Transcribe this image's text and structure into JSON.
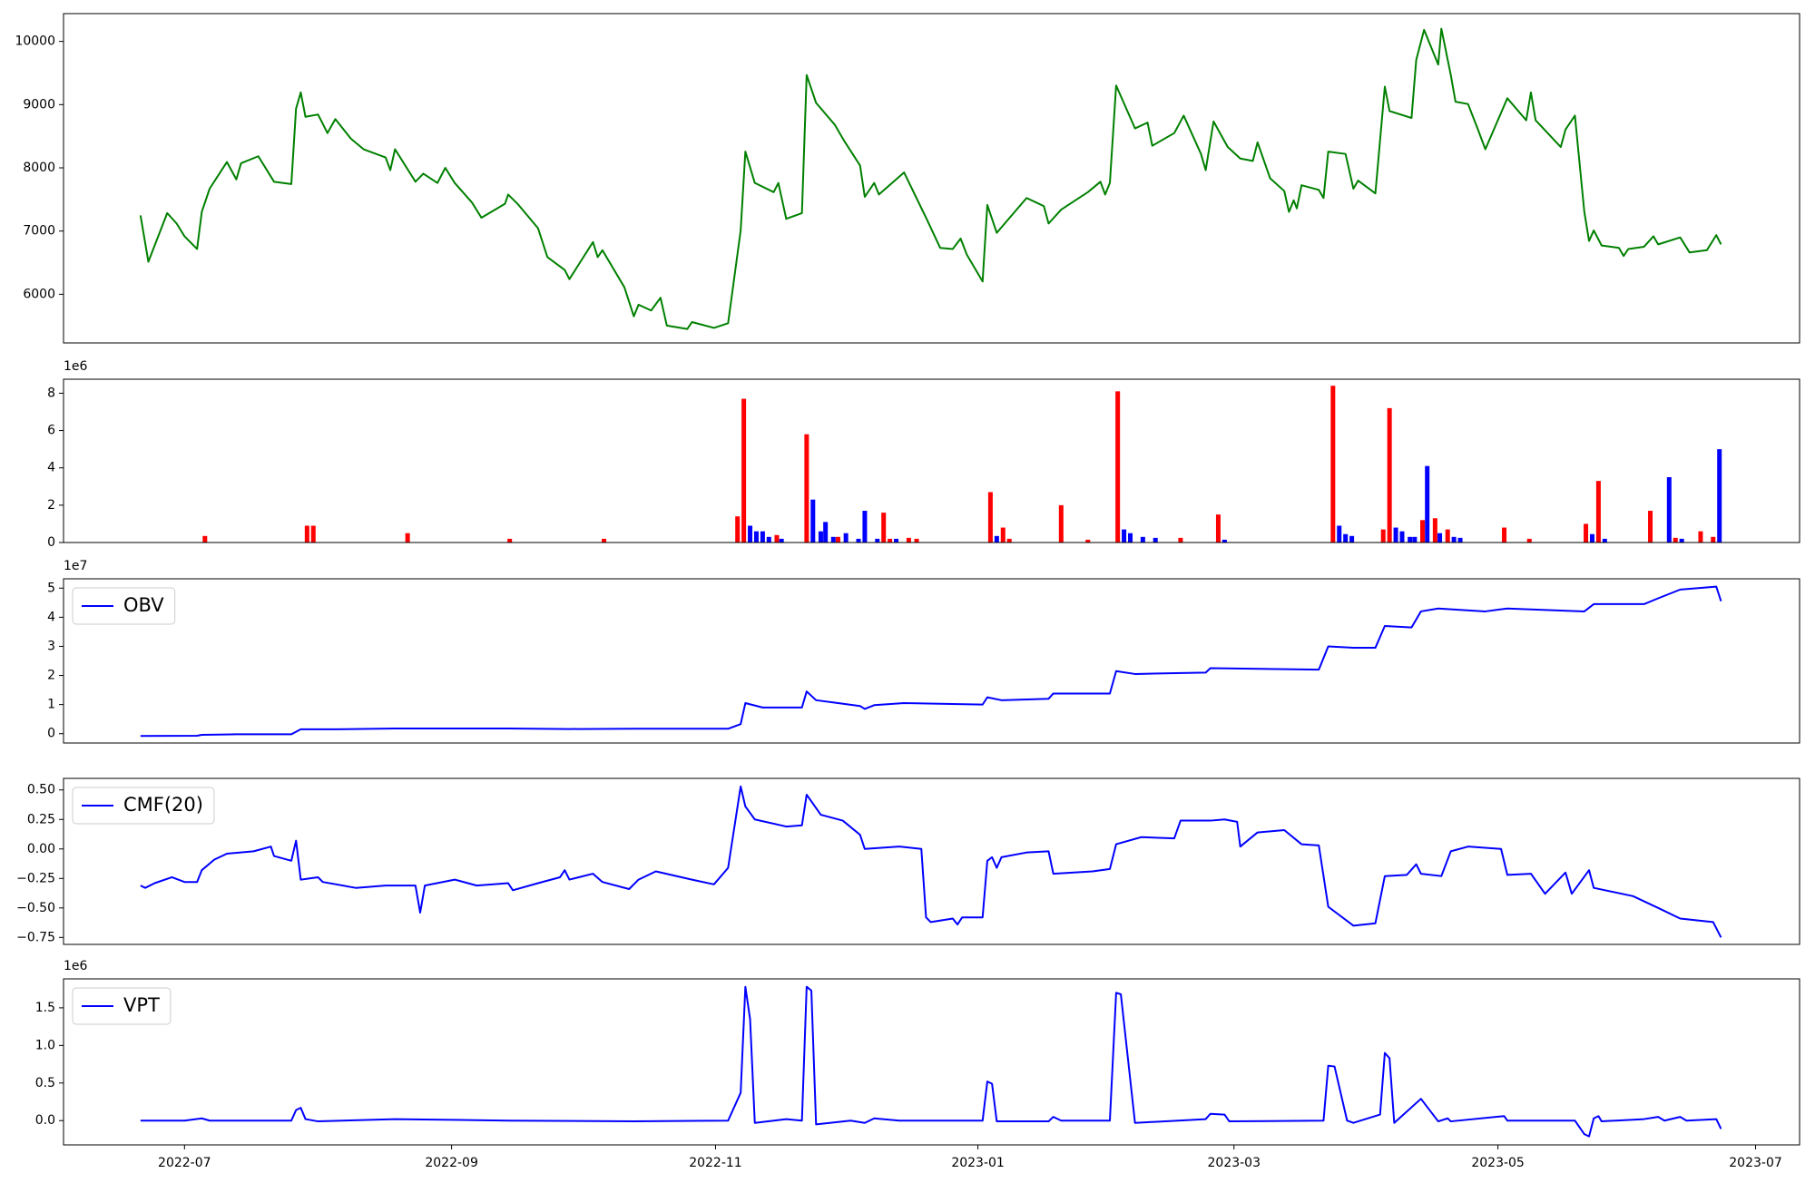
{
  "chart_data": [
    {
      "type": "line",
      "color": "green",
      "x": [
        2022.472,
        2022.477,
        2022.489,
        2022.495,
        2022.5,
        2022.508,
        2022.511,
        2022.516,
        2022.527,
        2022.533,
        2022.536,
        2022.547,
        2022.557,
        2022.568,
        2022.571,
        2022.574,
        2022.577,
        2022.585,
        2022.591,
        2022.596,
        2022.606,
        2022.614,
        2022.628,
        2022.631,
        2022.634,
        2022.647,
        2022.652,
        2022.661,
        2022.666,
        2022.672,
        2022.683,
        2022.689,
        2022.704,
        2022.706,
        2022.712,
        2022.725,
        2022.731,
        2022.742,
        2022.745,
        2022.76,
        2022.763,
        2022.766,
        2022.78,
        2022.786,
        2022.789,
        2022.797,
        2022.803,
        2022.807,
        2022.82,
        2022.823,
        2022.837,
        2022.846,
        2022.854,
        2022.857,
        2022.863,
        2022.875,
        2022.878,
        2022.883,
        2022.893,
        2022.896,
        2022.902,
        2022.914,
        2022.92,
        2022.93,
        2022.933,
        2022.939,
        2022.942,
        2022.958,
        2022.972,
        2022.981,
        2022.989,
        2022.994,
        2022.998,
        2023.008,
        2023.011,
        2023.017,
        2023.036,
        2023.047,
        2023.05,
        2023.058,
        2023.075,
        2023.083,
        2023.086,
        2023.089,
        2023.093,
        2023.105,
        2023.113,
        2023.116,
        2023.13,
        2023.136,
        2023.147,
        2023.15,
        2023.155,
        2023.164,
        2023.172,
        2023.18,
        2023.183,
        2023.191,
        2023.2,
        2023.203,
        2023.206,
        2023.208,
        2023.211,
        2023.222,
        2023.225,
        2023.228,
        2023.239,
        2023.244,
        2023.247,
        2023.258,
        2023.264,
        2023.267,
        2023.281,
        2023.284,
        2023.289,
        2023.298,
        2023.3,
        2023.306,
        2023.309,
        2023.317,
        2023.323,
        2023.328,
        2023.342,
        2023.354,
        2023.357,
        2023.36,
        2023.376,
        2023.379,
        2023.385,
        2023.391,
        2023.394,
        2023.397,
        2023.402,
        2023.413,
        2023.416,
        2023.419,
        2023.429,
        2023.435,
        2023.438,
        2023.452,
        2023.458,
        2023.469,
        2023.475,
        2023.478
      ],
      "values": [
        7248,
        6514,
        7284,
        7119,
        6917,
        6716,
        7303,
        7670,
        8092,
        7817,
        8073,
        8183,
        7780,
        7743,
        8936,
        9193,
        8807,
        8844,
        8550,
        8771,
        8459,
        8294,
        8165,
        7963,
        8294,
        7780,
        7908,
        7761,
        8000,
        7761,
        7450,
        7211,
        7431,
        7578,
        7431,
        7046,
        6587,
        6385,
        6239,
        6826,
        6587,
        6697,
        6110,
        5651,
        5835,
        5743,
        5945,
        5505,
        5450,
        5560,
        5468,
        5541,
        7009,
        8257,
        7761,
        7615,
        7761,
        7193,
        7284,
        9468,
        9028,
        8679,
        8422,
        8037,
        7541,
        7761,
        7578,
        7927,
        7211,
        6734,
        6716,
        6881,
        6624,
        6202,
        7413,
        6972,
        7523,
        7394,
        7119,
        7339,
        7615,
        7780,
        7578,
        7761,
        9303,
        8624,
        8716,
        8349,
        8550,
        8826,
        8220,
        7963,
        8734,
        8330,
        8147,
        8110,
        8404,
        7835,
        7633,
        7303,
        7486,
        7358,
        7725,
        7651,
        7523,
        8257,
        8220,
        7670,
        7798,
        7596,
        9284,
        8899,
        8789,
        9706,
        10183,
        9633,
        10202,
        9468,
        9046,
        9009,
        8624,
        8294,
        9101,
        8752,
        9193,
        8752,
        8330,
        8605,
        8826,
        7303,
        6844,
        7009,
        6771,
        6734,
        6606,
        6716,
        6752,
        6917,
        6789,
        6899,
        6661,
        6697,
        6936,
        6789
      ],
      "xlim": [
        2022.423,
        2023.528
      ],
      "ylim": [
        5230,
        10440
      ],
      "yticks": [
        6000,
        7000,
        8000,
        9000,
        10000
      ]
    },
    {
      "type": "bar",
      "y_offset_text": "1e6",
      "x": [
        2022.513,
        2022.578,
        2022.582,
        2022.642,
        2022.707,
        2022.767,
        2022.852,
        2022.856,
        2022.86,
        2022.864,
        2022.868,
        2022.872,
        2022.877,
        2022.88,
        2022.896,
        2022.9,
        2022.905,
        2022.908,
        2022.913,
        2022.916,
        2022.921,
        2022.929,
        2022.933,
        2022.941,
        2022.945,
        2022.949,
        2022.953,
        2022.961,
        2022.966,
        2023.013,
        2023.017,
        2023.021,
        2023.025,
        2023.058,
        2023.075,
        2023.094,
        2023.098,
        2023.102,
        2023.11,
        2023.118,
        2023.134,
        2023.158,
        2023.162,
        2023.231,
        2023.235,
        2023.239,
        2023.243,
        2023.263,
        2023.267,
        2023.271,
        2023.275,
        2023.28,
        2023.283,
        2023.288,
        2023.291,
        2023.296,
        2023.299,
        2023.304,
        2023.308,
        2023.312,
        2023.34,
        2023.356,
        2023.392,
        2023.396,
        2023.4,
        2023.404,
        2023.433,
        2023.445,
        2023.449,
        2023.453,
        2023.465,
        2023.473,
        2023.477
      ],
      "values": [
        0.35,
        0.9,
        0.9,
        0.5,
        0.2,
        0.2,
        1.4,
        7.7,
        0.9,
        0.6,
        0.6,
        0.3,
        0.4,
        0.2,
        5.8,
        2.3,
        0.6,
        1.1,
        0.3,
        0.3,
        0.5,
        0.2,
        1.7,
        0.2,
        1.6,
        0.2,
        0.2,
        0.25,
        0.2,
        2.7,
        0.35,
        0.8,
        0.2,
        2.0,
        0.15,
        8.1,
        0.7,
        0.5,
        0.3,
        0.25,
        0.25,
        1.5,
        0.15,
        8.4,
        0.9,
        0.45,
        0.35,
        0.7,
        7.2,
        0.8,
        0.6,
        0.3,
        0.3,
        1.2,
        4.1,
        1.3,
        0.5,
        0.7,
        0.3,
        0.25,
        0.8,
        0.2,
        1.0,
        0.45,
        3.3,
        0.2,
        1.7,
        3.5,
        0.25,
        0.2,
        0.6,
        0.3,
        5.0
      ],
      "colors": [
        "red",
        "red",
        "red",
        "red",
        "red",
        "red",
        "red",
        "red",
        "blue",
        "blue",
        "blue",
        "blue",
        "red",
        "blue",
        "red",
        "blue",
        "blue",
        "blue",
        "blue",
        "red",
        "blue",
        "blue",
        "blue",
        "blue",
        "red",
        "red",
        "blue",
        "red",
        "red",
        "red",
        "blue",
        "red",
        "red",
        "red",
        "red",
        "red",
        "blue",
        "blue",
        "blue",
        "blue",
        "red",
        "red",
        "blue",
        "red",
        "blue",
        "blue",
        "blue",
        "red",
        "red",
        "blue",
        "blue",
        "blue",
        "blue",
        "red",
        "blue",
        "red",
        "blue",
        "red",
        "blue",
        "blue",
        "red",
        "red",
        "red",
        "blue",
        "red",
        "blue",
        "red",
        "blue",
        "red",
        "blue",
        "red",
        "red",
        "blue"
      ],
      "xlim": [
        2022.423,
        2023.528
      ],
      "ylim": [
        0,
        8.75
      ],
      "yticks": [
        0,
        2,
        4,
        6,
        8
      ]
    },
    {
      "type": "line",
      "y_offset_text": "1e7",
      "legend": "upper left",
      "x": [
        2022.472,
        2022.508,
        2022.511,
        2022.533,
        2022.568,
        2022.574,
        2022.596,
        2022.634,
        2022.706,
        2022.745,
        2022.786,
        2022.846,
        2022.854,
        2022.857,
        2022.868,
        2022.893,
        2022.896,
        2022.902,
        2022.916,
        2022.93,
        2022.933,
        2022.939,
        2022.958,
        2023.008,
        2023.011,
        2023.02,
        2023.05,
        2023.053,
        2023.089,
        2023.093,
        2023.105,
        2023.15,
        2023.153,
        2023.222,
        2023.228,
        2023.244,
        2023.258,
        2023.264,
        2023.281,
        2023.287,
        2023.298,
        2023.328,
        2023.342,
        2023.391,
        2023.397,
        2023.429,
        2023.438,
        2023.452,
        2023.475,
        2023.478
      ],
      "series": [
        {
          "name": "OBV",
          "color": "blue",
          "values": [
            -0.08,
            -0.07,
            -0.04,
            -0.02,
            -0.02,
            0.15,
            0.15,
            0.18,
            0.18,
            0.16,
            0.17,
            0.17,
            0.33,
            1.05,
            0.9,
            0.9,
            1.45,
            1.15,
            1.05,
            0.95,
            0.85,
            0.98,
            1.05,
            1.0,
            1.25,
            1.15,
            1.2,
            1.38,
            1.38,
            2.15,
            2.05,
            2.1,
            2.25,
            2.2,
            3.0,
            2.95,
            2.95,
            3.7,
            3.65,
            4.2,
            4.3,
            4.2,
            4.3,
            4.2,
            4.45,
            4.45,
            4.65,
            4.95,
            5.05,
            4.55
          ]
        }
      ],
      "xlim": [
        2022.423,
        2023.528
      ],
      "ylim": [
        -0.32,
        5.32
      ],
      "yticks": [
        0,
        1,
        2,
        3,
        4,
        5
      ]
    },
    {
      "type": "line",
      "legend": "upper left",
      "x": [
        2022.472,
        2022.475,
        2022.481,
        2022.492,
        2022.5,
        2022.508,
        2022.511,
        2022.519,
        2022.527,
        2022.544,
        2022.555,
        2022.557,
        2022.568,
        2022.571,
        2022.574,
        2022.585,
        2022.588,
        2022.609,
        2022.628,
        2022.647,
        2022.65,
        2022.653,
        2022.672,
        2022.686,
        2022.706,
        2022.709,
        2022.725,
        2022.739,
        2022.742,
        2022.745,
        2022.76,
        2022.766,
        2022.783,
        2022.789,
        2022.8,
        2022.823,
        2022.837,
        2022.846,
        2022.854,
        2022.857,
        2022.863,
        2022.883,
        2022.893,
        2022.896,
        2022.905,
        2022.919,
        2022.93,
        2022.933,
        2022.955,
        2022.969,
        2022.972,
        2022.975,
        2022.989,
        2022.992,
        2022.995,
        2023.008,
        2023.011,
        2023.014,
        2023.017,
        2023.02,
        2023.036,
        2023.05,
        2023.053,
        2023.078,
        2023.089,
        2023.093,
        2023.109,
        2023.13,
        2023.134,
        2023.153,
        2023.162,
        2023.17,
        2023.172,
        2023.183,
        2023.2,
        2023.211,
        2023.222,
        2023.228,
        2023.244,
        2023.258,
        2023.264,
        2023.278,
        2023.284,
        2023.287,
        2023.3,
        2023.306,
        2023.317,
        2023.338,
        2023.342,
        2023.357,
        2023.366,
        2023.379,
        2023.383,
        2023.394,
        2023.397,
        2023.422,
        2023.438,
        2023.452,
        2023.473,
        2023.478
      ],
      "series": [
        {
          "name": "CMF(20)",
          "color": "blue",
          "values": [
            -0.31,
            -0.33,
            -0.29,
            -0.24,
            -0.28,
            -0.28,
            -0.18,
            -0.09,
            -0.04,
            -0.02,
            0.02,
            -0.06,
            -0.1,
            0.07,
            -0.26,
            -0.24,
            -0.28,
            -0.33,
            -0.31,
            -0.31,
            -0.54,
            -0.31,
            -0.26,
            -0.31,
            -0.29,
            -0.35,
            -0.29,
            -0.24,
            -0.18,
            -0.26,
            -0.21,
            -0.28,
            -0.34,
            -0.26,
            -0.19,
            -0.26,
            -0.3,
            -0.16,
            0.53,
            0.36,
            0.25,
            0.19,
            0.2,
            0.46,
            0.29,
            0.24,
            0.12,
            0.0,
            0.02,
            0.0,
            -0.58,
            -0.62,
            -0.59,
            -0.64,
            -0.58,
            -0.58,
            -0.1,
            -0.07,
            -0.16,
            -0.07,
            -0.03,
            -0.02,
            -0.21,
            -0.19,
            -0.17,
            0.04,
            0.1,
            0.09,
            0.24,
            0.24,
            0.25,
            0.23,
            0.02,
            0.14,
            0.16,
            0.04,
            0.03,
            -0.49,
            -0.65,
            -0.63,
            -0.23,
            -0.22,
            -0.13,
            -0.21,
            -0.23,
            -0.02,
            0.02,
            0.0,
            -0.22,
            -0.21,
            -0.38,
            -0.2,
            -0.38,
            -0.18,
            -0.33,
            -0.4,
            -0.5,
            -0.59,
            -0.62,
            -0.75
          ]
        }
      ],
      "xlim": [
        2022.423,
        2023.528
      ],
      "ylim": [
        -0.809,
        0.598
      ],
      "yticks": [
        {
          "value": 0.5,
          "label": "0.50"
        },
        0.25,
        {
          "value": 0,
          "label": "0.00"
        },
        {
          "value": -0.25,
          "label": "−0.25"
        },
        {
          "value": -0.5,
          "label": "−0.50"
        },
        {
          "value": -0.75,
          "label": "−0.75"
        }
      ]
    },
    {
      "type": "line",
      "y_offset_text": "1e6",
      "legend": "upper left",
      "x": [
        2022.472,
        2022.5,
        2022.511,
        2022.516,
        2022.568,
        2022.571,
        2022.574,
        2022.577,
        2022.585,
        2022.634,
        2022.706,
        2022.786,
        2022.846,
        2022.854,
        2022.857,
        2022.86,
        2022.863,
        2022.883,
        2022.893,
        2022.896,
        2022.899,
        2022.902,
        2022.924,
        2022.933,
        2022.939,
        2022.955,
        2023.008,
        2023.011,
        2023.014,
        2023.017,
        2023.05,
        2023.053,
        2023.058,
        2023.089,
        2023.093,
        2023.096,
        2023.105,
        2023.15,
        2023.153,
        2023.162,
        2023.165,
        2023.225,
        2023.228,
        2023.232,
        2023.24,
        2023.244,
        2023.261,
        2023.264,
        2023.267,
        2023.27,
        2023.287,
        2023.298,
        2023.304,
        2023.306,
        2023.34,
        2023.342,
        2023.385,
        2023.391,
        2023.394,
        2023.397,
        2023.4,
        2023.402,
        2023.429,
        2023.438,
        2023.442,
        2023.452,
        2023.456,
        2023.475,
        2023.478
      ],
      "series": [
        {
          "name": "VPT",
          "color": "blue",
          "values": [
            0,
            0,
            0.03,
            0,
            0,
            0.14,
            0.17,
            0.02,
            -0.01,
            0.02,
            0,
            -0.01,
            0,
            0.37,
            1.78,
            1.35,
            -0.03,
            0.02,
            0,
            1.78,
            1.73,
            -0.05,
            0,
            -0.03,
            0.03,
            0,
            0,
            0.52,
            0.49,
            -0.01,
            -0.01,
            0.05,
            0,
            0,
            1.7,
            1.68,
            -0.03,
            0.02,
            0.09,
            0.08,
            -0.01,
            0,
            0.73,
            0.72,
            0,
            -0.03,
            0.08,
            0.9,
            0.83,
            -0.03,
            0.29,
            -0.01,
            0.03,
            -0.01,
            0.06,
            0,
            0,
            -0.18,
            -0.21,
            0.03,
            0.06,
            -0.01,
            0.02,
            0.05,
            0,
            0.05,
            0,
            0.02,
            -0.11
          ]
        }
      ],
      "xlim": [
        2022.423,
        2023.528
      ],
      "ylim": [
        -0.323,
        1.885
      ],
      "yticks": [
        {
          "value": 0,
          "label": "0.0"
        },
        0.5,
        {
          "value": 1,
          "label": "1.0"
        },
        1.5
      ],
      "xticks": [
        {
          "value": 2022.5,
          "label": "2022-07"
        },
        {
          "value": 2022.67,
          "label": "2022-09"
        },
        {
          "value": 2022.838,
          "label": "2022-11"
        },
        {
          "value": 2023.005,
          "label": "2023-01"
        },
        {
          "value": 2023.168,
          "label": "2023-03"
        },
        {
          "value": 2023.336,
          "label": "2023-05"
        },
        {
          "value": 2023.5,
          "label": "2023-07"
        }
      ]
    }
  ]
}
